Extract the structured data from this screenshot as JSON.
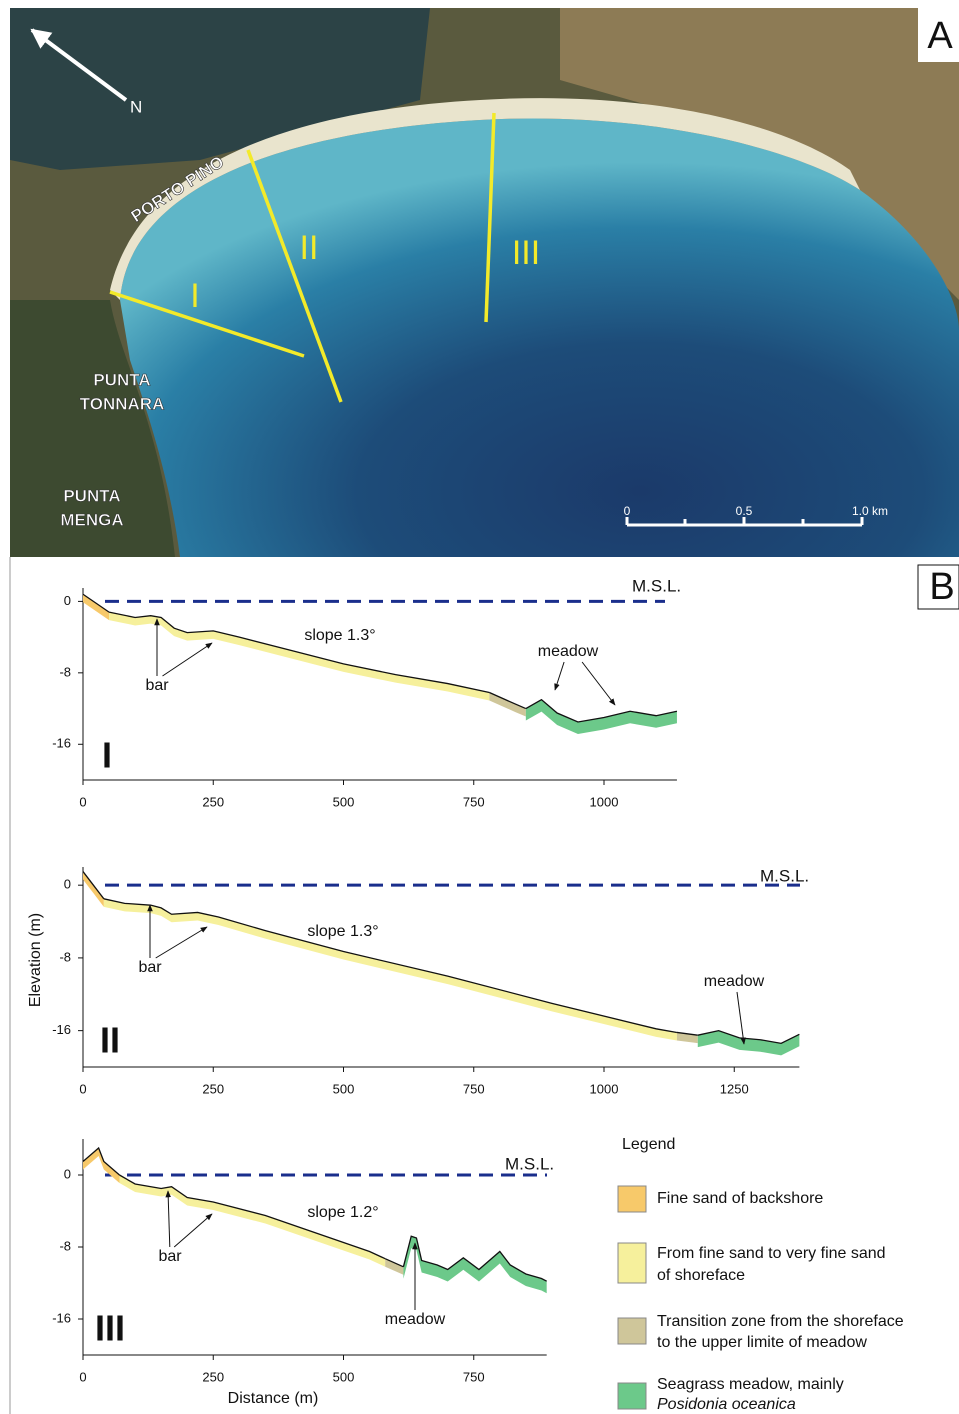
{
  "map": {
    "panel_label": "A",
    "north": "N",
    "place_labels": [
      "PORTO PINO",
      "PUNTA",
      "TONNARA",
      "PUNTA",
      "MENGA"
    ],
    "transects": [
      "I",
      "II",
      "III"
    ],
    "scale_labels": [
      "0",
      "0.5",
      "1.0 km"
    ]
  },
  "panel_b_label": "B",
  "chart_data": [
    {
      "type": "profile",
      "numeral": "I",
      "msl": {
        "label": "M.S.L.",
        "elevation": 0
      },
      "xlim": [
        0,
        1140
      ],
      "ylim": [
        -20,
        1.5
      ],
      "xticks": [
        0,
        250,
        500,
        750,
        1000
      ],
      "yticks": [
        0,
        -8,
        -16
      ],
      "annotations": [
        "bar",
        "slope 1.3°",
        "meadow"
      ],
      "series": [
        {
          "color": "#f7c96a",
          "x": [
            0,
            20,
            50
          ],
          "values": [
            0.8,
            0,
            -1.2
          ]
        },
        {
          "color": "#f6f09c",
          "x": [
            50,
            100,
            130,
            150,
            175,
            200,
            250,
            300,
            400,
            500,
            600,
            700,
            780
          ],
          "values": [
            -1.2,
            -1.8,
            -1.6,
            -1.8,
            -3,
            -3.5,
            -3.3,
            -4,
            -5.5,
            -7,
            -8.2,
            -9.2,
            -10.2
          ]
        },
        {
          "color": "#cfc69a",
          "x": [
            780,
            830,
            850
          ],
          "values": [
            -10.2,
            -11.5,
            -12
          ]
        },
        {
          "color": "#6cc98a",
          "x": [
            850,
            880,
            910,
            950,
            1000,
            1050,
            1100,
            1140
          ],
          "values": [
            -12,
            -11,
            -12.5,
            -13.5,
            -13,
            -12.3,
            -12.8,
            -12.3
          ]
        }
      ]
    },
    {
      "type": "profile",
      "numeral": "II",
      "msl": {
        "label": "M.S.L.",
        "elevation": 0
      },
      "y_label": "Elevation (m)",
      "xlim": [
        0,
        1375
      ],
      "ylim": [
        -20,
        2
      ],
      "xticks": [
        0,
        250,
        500,
        750,
        1000,
        1250
      ],
      "yticks": [
        0,
        -8,
        -16
      ],
      "annotations": [
        "bar",
        "slope 1.3°",
        "meadow"
      ],
      "series": [
        {
          "color": "#f7c96a",
          "x": [
            0,
            20,
            40
          ],
          "values": [
            1.5,
            0,
            -1.5
          ]
        },
        {
          "color": "#f6f09c",
          "x": [
            40,
            80,
            130,
            150,
            170,
            220,
            260,
            350,
            500,
            700,
            900,
            1100,
            1140
          ],
          "values": [
            -1.5,
            -2,
            -2.2,
            -2.5,
            -3.2,
            -3,
            -3.5,
            -5,
            -7.3,
            -10,
            -13,
            -15.8,
            -16.2
          ]
        },
        {
          "color": "#cfc69a",
          "x": [
            1140,
            1180
          ],
          "values": [
            -16.2,
            -16.5
          ]
        },
        {
          "color": "#6cc98a",
          "x": [
            1180,
            1220,
            1260,
            1300,
            1340,
            1375
          ],
          "values": [
            -16.5,
            -16,
            -16.8,
            -17,
            -17.4,
            -16.4
          ]
        }
      ]
    },
    {
      "type": "profile",
      "numeral": "III",
      "msl": {
        "label": "M.S.L.",
        "elevation": 0
      },
      "x_label": "Distance (m)",
      "xlim": [
        0,
        890
      ],
      "ylim": [
        -20,
        4
      ],
      "xticks": [
        0,
        250,
        500,
        750
      ],
      "yticks": [
        0,
        -8,
        -16
      ],
      "annotations": [
        "bar",
        "slope 1.2°",
        "meadow"
      ],
      "series": [
        {
          "color": "#f7c96a",
          "x": [
            0,
            20,
            30,
            40,
            70
          ],
          "values": [
            1.5,
            2.5,
            3,
            1.5,
            0
          ]
        },
        {
          "color": "#f6f09c",
          "x": [
            70,
            100,
            150,
            170,
            200,
            250,
            350,
            450,
            550,
            580
          ],
          "values": [
            0,
            -1,
            -1.5,
            -1.3,
            -2.5,
            -3,
            -4.5,
            -6.5,
            -8.5,
            -9.3
          ]
        },
        {
          "color": "#cfc69a",
          "x": [
            580,
            615
          ],
          "values": [
            -9.3,
            -10.2
          ]
        },
        {
          "color": "#6cc98a",
          "x": [
            615,
            630,
            640,
            650,
            680,
            700,
            730,
            760,
            800,
            820,
            850,
            880,
            890
          ],
          "values": [
            -10.2,
            -6.8,
            -7,
            -9.5,
            -10,
            -10.5,
            -9.2,
            -10.5,
            -8.5,
            -10,
            -11,
            -11.5,
            -11.8
          ]
        }
      ]
    }
  ],
  "legend": {
    "title": "Legend",
    "items": [
      {
        "label": [
          "Fine sand of backshore"
        ],
        "color": "#f7c96a"
      },
      {
        "label": [
          "From fine sand to very fine sand",
          "of shoreface"
        ],
        "color": "#f6f09c"
      },
      {
        "label": [
          "Transition zone from the shoreface",
          "to the upper limite of meadow"
        ],
        "color": "#cfc69a"
      },
      {
        "label": [
          "Seagrass meadow, mainly",
          "Posidonia oceanica"
        ],
        "color": "#6cc98a"
      }
    ]
  }
}
